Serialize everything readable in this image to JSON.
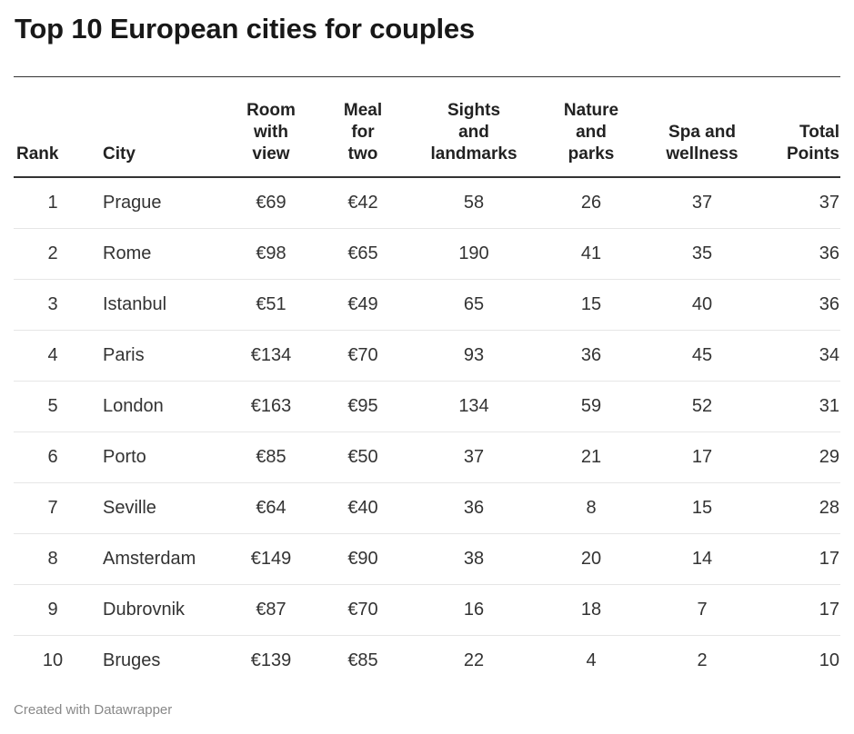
{
  "chart_data": {
    "type": "table",
    "title": "Top 10 European cities for couples",
    "columns": [
      "Rank",
      "City",
      "Room with view",
      "Meal for two",
      "Sights and landmarks",
      "Nature and parks",
      "Spa and wellness",
      "Total Points"
    ],
    "header_lines": [
      [
        "Rank"
      ],
      [
        "City"
      ],
      [
        "Room",
        "with",
        "view"
      ],
      [
        "Meal",
        "for",
        "two"
      ],
      [
        "Sights",
        "and",
        "landmarks"
      ],
      [
        "Nature",
        "and",
        "parks"
      ],
      [
        "Spa and",
        "wellness"
      ],
      [
        "Total",
        "Points"
      ]
    ],
    "rows": [
      [
        "1",
        "Prague",
        "€69",
        "€42",
        "58",
        "26",
        "37",
        "37"
      ],
      [
        "2",
        "Rome",
        "€98",
        "€65",
        "190",
        "41",
        "35",
        "36"
      ],
      [
        "3",
        "Istanbul",
        "€51",
        "€49",
        "65",
        "15",
        "40",
        "36"
      ],
      [
        "4",
        "Paris",
        "€134",
        "€70",
        "93",
        "36",
        "45",
        "34"
      ],
      [
        "5",
        "London",
        "€163",
        "€95",
        "134",
        "59",
        "52",
        "31"
      ],
      [
        "6",
        "Porto",
        "€85",
        "€50",
        "37",
        "21",
        "17",
        "29"
      ],
      [
        "7",
        "Seville",
        "€64",
        "€40",
        "36",
        "8",
        "15",
        "28"
      ],
      [
        "8",
        "Amsterdam",
        "€149",
        "€90",
        "38",
        "20",
        "14",
        "17"
      ],
      [
        "9",
        "Dubrovnik",
        "€87",
        "€70",
        "16",
        "18",
        "7",
        "17"
      ],
      [
        "10",
        "Bruges",
        "€139",
        "€85",
        "22",
        "4",
        "2",
        "10"
      ]
    ]
  },
  "footer": {
    "credit": "Created with Datawrapper"
  }
}
